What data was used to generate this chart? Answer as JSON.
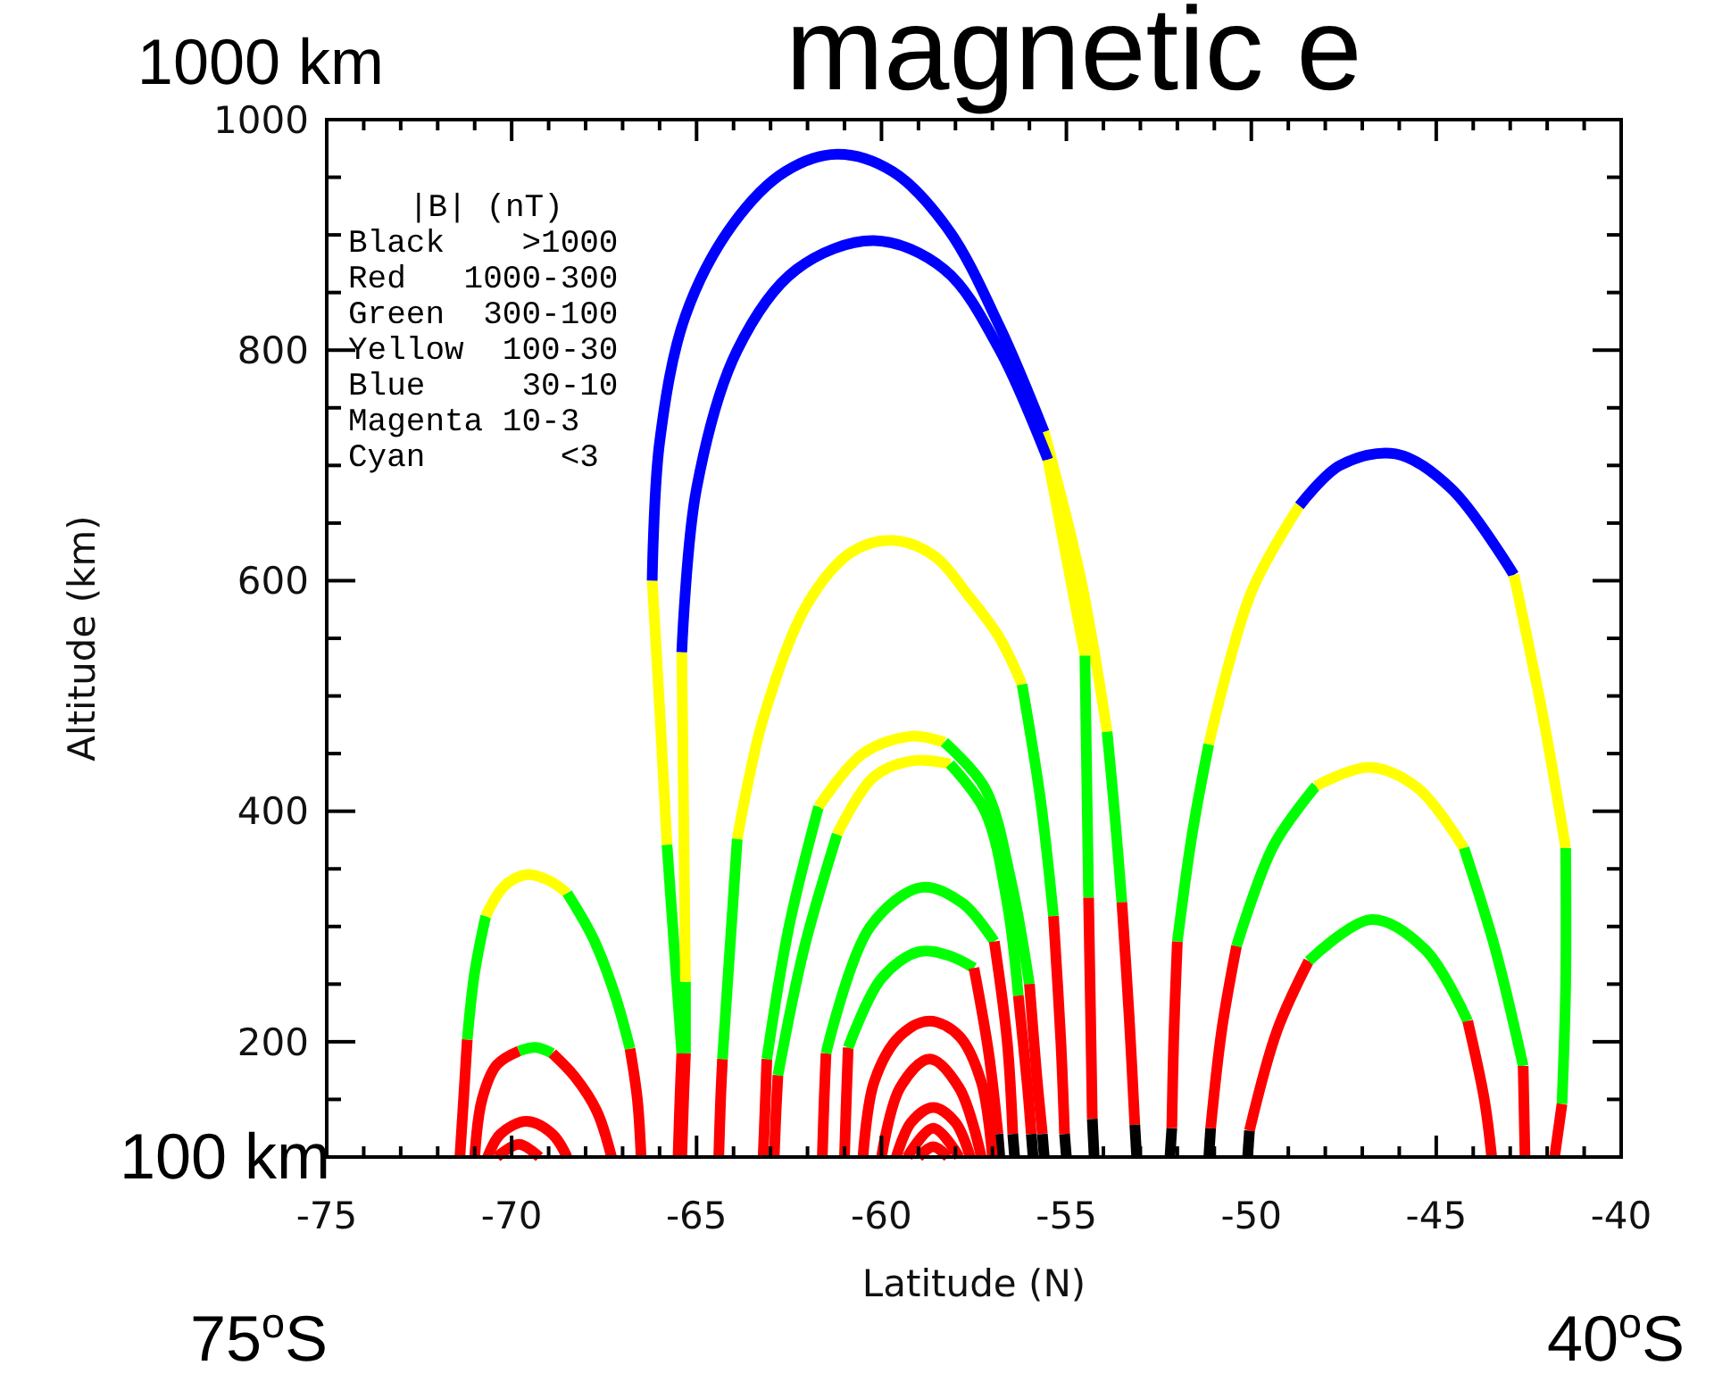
{
  "chart_data": {
    "type": "line",
    "title": "magnetic e",
    "xlabel": "Latitude (N)",
    "ylabel": "Altitude (km)",
    "xlim": [
      -75,
      -40
    ],
    "ylim": [
      100,
      1000
    ],
    "xticks": [
      -75,
      {
        "value": -74,
        "label": null
      },
      {
        "value": -73,
        "label": null
      },
      {
        "value": -72,
        "label": null
      },
      {
        "value": -71,
        "label": null
      },
      -70,
      {
        "value": -69,
        "label": null
      },
      {
        "value": -68,
        "label": null
      },
      {
        "value": -67,
        "label": null
      },
      {
        "value": -66,
        "label": null
      },
      -65,
      {
        "value": -64,
        "label": null
      },
      {
        "value": -63,
        "label": null
      },
      {
        "value": -62,
        "label": null
      },
      {
        "value": -61,
        "label": null
      },
      -60,
      {
        "value": -59,
        "label": null
      },
      {
        "value": -58,
        "label": null
      },
      {
        "value": -57,
        "label": null
      },
      {
        "value": -56,
        "label": null
      },
      -55,
      {
        "value": -54,
        "label": null
      },
      {
        "value": -53,
        "label": null
      },
      {
        "value": -52,
        "label": null
      },
      {
        "value": -51,
        "label": null
      },
      -50,
      {
        "value": -49,
        "label": null
      },
      {
        "value": -48,
        "label": null
      },
      {
        "value": -47,
        "label": null
      },
      {
        "value": -46,
        "label": null
      },
      -45,
      {
        "value": -44,
        "label": null
      },
      {
        "value": -43,
        "label": null
      },
      {
        "value": -42,
        "label": null
      },
      {
        "value": -41,
        "label": null
      },
      -40
    ],
    "yticks": [
      {
        "value": 150,
        "label": null
      },
      200,
      {
        "value": 250,
        "label": null
      },
      {
        "value": 300,
        "label": null
      },
      {
        "value": 350,
        "label": null
      },
      400,
      {
        "value": 450,
        "label": null
      },
      {
        "value": 500,
        "label": null
      },
      {
        "value": 550,
        "label": null
      },
      600,
      {
        "value": 650,
        "label": null
      },
      {
        "value": 700,
        "label": null
      },
      {
        "value": 750,
        "label": null
      },
      800,
      {
        "value": 850,
        "label": null
      },
      {
        "value": 900,
        "label": null
      },
      {
        "value": 950,
        "label": null
      },
      1000
    ],
    "annotations": [
      "|B| (nT)",
      "Black    >1000",
      "Red   1000-300",
      "Green  300-100",
      "Yellow  100-30",
      "Blue     30-10",
      "Magenta 10-3",
      "Cyan       <3",
      "1000 km",
      "100 km",
      "75$^{o}$S",
      "40$^{o}$S"
    ],
    "series": [
      {
        "color": "#ff0000",
        "x": [
          -71.4,
          -71.3,
          -71.2
        ],
        "values": [
          100,
          150,
          202
        ]
      },
      {
        "color": "#00ff00",
        "x": [
          -71.2,
          -71.0,
          -70.7
        ],
        "values": [
          202,
          260,
          309
        ]
      },
      {
        "color": "#ffff00",
        "x": [
          -70.7,
          -70.2,
          -69.6,
          -69.0,
          -68.5
        ],
        "values": [
          309,
          335,
          345,
          340,
          329
        ]
      },
      {
        "color": "#00ff00",
        "x": [
          -68.5,
          -67.8,
          -67.2,
          -66.8
        ],
        "values": [
          329,
          290,
          240,
          194
        ]
      },
      {
        "color": "#ff0000",
        "x": [
          -66.8,
          -66.6,
          -66.5
        ],
        "values": [
          194,
          150,
          100
        ]
      },
      {
        "color": "#ff0000",
        "x": [
          -71.0,
          -70.8,
          -70.4,
          -69.8
        ],
        "values": [
          100,
          150,
          180,
          192
        ]
      },
      {
        "color": "#00fe00",
        "x": [
          -69.8,
          -69.35,
          -68.9
        ],
        "values": [
          192,
          195,
          190
        ]
      },
      {
        "color": "#ff0000",
        "x": [
          -68.9,
          -68.3,
          -67.7,
          -67.3
        ],
        "values": [
          190,
          170,
          140,
          100
        ]
      },
      {
        "color": "#ff0000",
        "x": [
          -70.65,
          -70.3,
          -69.6,
          -68.9,
          -68.5
        ],
        "values": [
          100,
          120,
          131,
          120,
          100
        ]
      },
      {
        "color": "#ff0000",
        "x": [
          -70.4,
          -69.8,
          -69.25
        ],
        "values": [
          100,
          111,
          100
        ]
      },
      {
        "color": "#ff0000",
        "x": [
          -65.5,
          -65.45,
          -65.4
        ],
        "values": [
          100,
          150,
          190
        ]
      },
      {
        "color": "#00ff00",
        "x": [
          -65.4,
          -65.6,
          -65.8
        ],
        "values": [
          190,
          280,
          371
        ]
      },
      {
        "color": "#ffff00",
        "x": [
          -65.8,
          -66.0,
          -66.2
        ],
        "values": [
          371,
          490,
          600
        ]
      },
      {
        "color": "#0000ff",
        "x": [
          -66.2,
          -66.0,
          -65.3,
          -64.0,
          -62.6,
          -61.2,
          -59.7,
          -58.2,
          -56.8,
          -55.6
        ],
        "values": [
          600,
          720,
          830,
          910,
          955,
          970,
          955,
          905,
          820,
          729
        ]
      },
      {
        "color": "#ffff00",
        "x": [
          -55.6,
          -54.6,
          -53.9
        ],
        "values": [
          729,
          600,
          469
        ]
      },
      {
        "color": "#00ff00",
        "x": [
          -53.9,
          -53.7,
          -53.5
        ],
        "values": [
          469,
          400,
          321
        ]
      },
      {
        "color": "#ff0000",
        "x": [
          -53.5,
          -53.3,
          -53.15
        ],
        "values": [
          321,
          220,
          128
        ]
      },
      {
        "color": "#000000",
        "x": [
          -53.15,
          -53.1
        ],
        "values": [
          128,
          100
        ]
      },
      {
        "color": "#ff0000",
        "x": [
          -65.4,
          -65.35,
          -65.3
        ],
        "values": [
          100,
          150,
          190
        ]
      },
      {
        "color": "#00ff00",
        "x": [
          -65.3,
          -65.3
        ],
        "values": [
          190,
          252
        ]
      },
      {
        "color": "#ffff00",
        "x": [
          -65.3,
          -65.35,
          -65.4
        ],
        "values": [
          252,
          400,
          538
        ]
      },
      {
        "color": "#0000ff",
        "x": [
          -65.4,
          -65.0,
          -63.9,
          -62.3,
          -60.2,
          -58.3,
          -56.8,
          -55.5
        ],
        "values": [
          538,
          680,
          800,
          870,
          895,
          870,
          800,
          705
        ]
      },
      {
        "color": "#ffff00",
        "x": [
          -55.5,
          -55.0,
          -54.5
        ],
        "values": [
          705,
          620,
          535
        ]
      },
      {
        "color": "#00ff00",
        "x": [
          -54.5,
          -54.45,
          -54.4
        ],
        "values": [
          535,
          430,
          325
        ]
      },
      {
        "color": "#ff0000",
        "x": [
          -54.4,
          -54.35,
          -54.3
        ],
        "values": [
          325,
          230,
          133
        ]
      },
      {
        "color": "#000000",
        "x": [
          -54.3,
          -54.25
        ],
        "values": [
          133,
          100
        ]
      },
      {
        "color": "#ff0000",
        "x": [
          -64.4,
          -64.35,
          -64.3
        ],
        "values": [
          100,
          150,
          185
        ]
      },
      {
        "color": "#00ff00",
        "x": [
          -64.3,
          -64.1,
          -63.9
        ],
        "values": [
          185,
          280,
          376
        ]
      },
      {
        "color": "#ffff00",
        "x": [
          -63.9,
          -63.2,
          -62.0,
          -60.8,
          -59.7,
          -58.6,
          -57.6,
          -56.8,
          -56.2
        ],
        "values": [
          376,
          480,
          580,
          625,
          635,
          622,
          585,
          550,
          510
        ]
      },
      {
        "color": "#00ff00",
        "x": [
          -56.2,
          -55.7,
          -55.35
        ],
        "values": [
          510,
          410,
          309
        ]
      },
      {
        "color": "#ff0000",
        "x": [
          -55.35,
          -55.15,
          -55.05
        ],
        "values": [
          309,
          200,
          120
        ]
      },
      {
        "color": "#000000",
        "x": [
          -55.05,
          -55.0
        ],
        "values": [
          120,
          100
        ]
      },
      {
        "color": "#ff0000",
        "x": [
          -63.2,
          -63.15,
          -63.1
        ],
        "values": [
          100,
          140,
          185
        ]
      },
      {
        "color": "#00ff00",
        "x": [
          -63.1,
          -62.5,
          -61.7
        ],
        "values": [
          185,
          300,
          404
        ]
      },
      {
        "color": "#ffff00",
        "x": [
          -61.7,
          -60.5,
          -59.2,
          -58.3
        ],
        "values": [
          404,
          450,
          465,
          460
        ]
      },
      {
        "color": "#00ff00",
        "x": [
          -58.3,
          -57.2,
          -56.5,
          -56.0
        ],
        "values": [
          460,
          420,
          340,
          250
        ]
      },
      {
        "color": "#ff0000",
        "x": [
          -56.0,
          -55.8,
          -55.65
        ],
        "values": [
          250,
          170,
          120
        ]
      },
      {
        "color": "#000000",
        "x": [
          -55.65,
          -55.6
        ],
        "values": [
          120,
          100
        ]
      },
      {
        "color": "#ff0000",
        "x": [
          -62.9,
          -62.85,
          -62.8
        ],
        "values": [
          100,
          140,
          171
        ]
      },
      {
        "color": "#00ff00",
        "x": [
          -62.8,
          -62.1,
          -61.2
        ],
        "values": [
          171,
          280,
          380
        ]
      },
      {
        "color": "#ffff00",
        "x": [
          -61.2,
          -60.2,
          -59.1,
          -58.15
        ],
        "values": [
          380,
          430,
          444,
          441
        ]
      },
      {
        "color": "#00ff00",
        "x": [
          -58.15,
          -57.2,
          -56.6,
          -56.3
        ],
        "values": [
          441,
          400,
          320,
          240
        ]
      },
      {
        "color": "#ff0000",
        "x": [
          -56.3,
          -56.05,
          -55.95
        ],
        "values": [
          240,
          160,
          120
        ]
      },
      {
        "color": "#000000",
        "x": [
          -55.95,
          -55.9
        ],
        "values": [
          120,
          100
        ]
      },
      {
        "color": "#ff0000",
        "x": [
          -61.6,
          -61.55,
          -61.5
        ],
        "values": [
          100,
          150,
          190
        ]
      },
      {
        "color": "#01ff00",
        "x": [
          -61.5,
          -60.3,
          -58.9,
          -57.8,
          -56.95
        ],
        "values": [
          190,
          300,
          334,
          320,
          287
        ]
      },
      {
        "color": "#ff0000",
        "x": [
          -56.95,
          -56.6,
          -56.45
        ],
        "values": [
          287,
          200,
          120
        ]
      },
      {
        "color": "#000000",
        "x": [
          -56.45,
          -56.4
        ],
        "values": [
          120,
          100
        ]
      },
      {
        "color": "#ff0000",
        "x": [
          -61.0,
          -60.95,
          -60.9
        ],
        "values": [
          100,
          150,
          195
        ]
      },
      {
        "color": "#00ff01",
        "x": [
          -60.9,
          -60.0,
          -59.0,
          -58.2,
          -57.5
        ],
        "values": [
          195,
          255,
          278,
          275,
          264
        ]
      },
      {
        "color": "#ff0000",
        "x": [
          -57.5,
          -57.1,
          -56.85
        ],
        "values": [
          264,
          190,
          120
        ]
      },
      {
        "color": "#000000",
        "x": [
          -56.85,
          -56.8
        ],
        "values": [
          120,
          100
        ]
      },
      {
        "color": "#ff0000",
        "x": [
          -60.5,
          -60.2,
          -59.5,
          -58.7,
          -57.9,
          -57.3,
          -57.0
        ],
        "values": [
          100,
          165,
          205,
          218,
          205,
          165,
          100
        ]
      },
      {
        "color": "#ff0000",
        "x": [
          -60.0,
          -59.5,
          -58.7,
          -57.9,
          -57.3
        ],
        "values": [
          100,
          160,
          185,
          160,
          100
        ]
      },
      {
        "color": "#ff0000",
        "x": [
          -59.6,
          -59.2,
          -58.6,
          -58.0,
          -57.6
        ],
        "values": [
          100,
          130,
          143,
          130,
          100
        ]
      },
      {
        "color": "#ff0000",
        "x": [
          -59.3,
          -58.6,
          -57.9
        ],
        "values": [
          100,
          125,
          100
        ]
      },
      {
        "color": "#ff0000",
        "x": [
          -59.0,
          -58.6,
          -58.2
        ],
        "values": [
          100,
          109,
          100
        ]
      },
      {
        "color": "#000000",
        "x": [
          -52.2,
          -52.15
        ],
        "values": [
          100,
          125
        ]
      },
      {
        "color": "#ff0000",
        "x": [
          -52.15,
          -52.1,
          -52.0
        ],
        "values": [
          125,
          200,
          287
        ]
      },
      {
        "color": "#00ff00",
        "x": [
          -52.0,
          -51.6,
          -51.15
        ],
        "values": [
          287,
          380,
          458
        ]
      },
      {
        "color": "#ffff00",
        "x": [
          -51.15,
          -50.0,
          -48.7
        ],
        "values": [
          458,
          590,
          665
        ]
      },
      {
        "color": "#0000ff",
        "x": [
          -48.7,
          -47.6,
          -46.1,
          -44.6,
          -42.9
        ],
        "values": [
          665,
          700,
          710,
          680,
          605
        ]
      },
      {
        "color": "#ffff00",
        "x": [
          -42.9,
          -42.1,
          -41.5
        ],
        "values": [
          605,
          480,
          368
        ]
      },
      {
        "color": "#00ff00",
        "x": [
          -41.5,
          -41.5,
          -41.6
        ],
        "values": [
          368,
          250,
          146
        ]
      },
      {
        "color": "#ff0000",
        "x": [
          -41.6,
          -41.8
        ],
        "values": [
          146,
          100
        ]
      },
      {
        "color": "#000000",
        "x": [
          -51.15,
          -51.1
        ],
        "values": [
          100,
          125
        ]
      },
      {
        "color": "#ff0000",
        "x": [
          -51.1,
          -50.8,
          -50.4
        ],
        "values": [
          125,
          210,
          283
        ]
      },
      {
        "color": "#00ff00",
        "x": [
          -50.4,
          -49.4,
          -48.25
        ],
        "values": [
          283,
          370,
          422
        ]
      },
      {
        "color": "#ffff00",
        "x": [
          -48.25,
          -46.8,
          -45.5,
          -44.25
        ],
        "values": [
          422,
          438,
          420,
          368
        ]
      },
      {
        "color": "#00ff00",
        "x": [
          -44.25,
          -43.4,
          -42.65
        ],
        "values": [
          368,
          280,
          179
        ]
      },
      {
        "color": "#ff0000",
        "x": [
          -42.65,
          -42.6
        ],
        "values": [
          179,
          100
        ]
      },
      {
        "color": "#000000",
        "x": [
          -50.1,
          -50.05
        ],
        "values": [
          100,
          123
        ]
      },
      {
        "color": "#ff0000",
        "x": [
          -50.05,
          -49.3,
          -48.45
        ],
        "values": [
          123,
          210,
          270
        ]
      },
      {
        "color": "#02ff00",
        "x": [
          -48.45,
          -46.75,
          -45.3,
          -44.15
        ],
        "values": [
          270,
          306,
          280,
          218
        ]
      },
      {
        "color": "#ff0000",
        "x": [
          -44.15,
          -43.7,
          -43.5
        ],
        "values": [
          218,
          150,
          100
        ]
      }
    ]
  }
}
